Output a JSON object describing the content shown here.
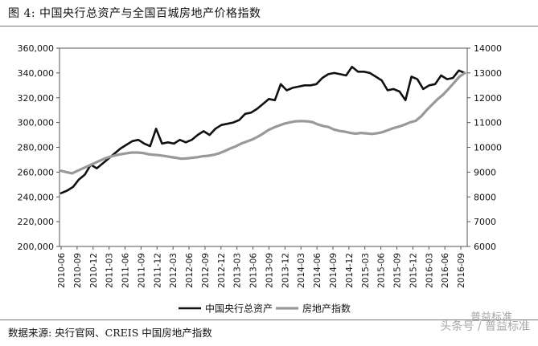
{
  "title": "图 4:  中国央行总资产与全国百城房地产价格指数",
  "source": "数据来源:  央行官网、CREIS 中国房地产指数",
  "watermark": "头条号 / 普益标准",
  "watermark_brand": "普益标准",
  "colors": {
    "series1": "#111111",
    "series2": "#999999",
    "axis": "#555555"
  },
  "chart_data": {
    "type": "line",
    "title": "",
    "xlabel": "",
    "ylabel": "",
    "ylim_left": [
      200000,
      360000
    ],
    "ylim_right": [
      6000,
      14000
    ],
    "yticks_left": [
      "200,000",
      "220,000",
      "240,000",
      "260,000",
      "280,000",
      "300,000",
      "320,000",
      "340,000",
      "360,000"
    ],
    "yticks_right": [
      "6000",
      "7000",
      "8000",
      "9000",
      "10000",
      "11000",
      "12000",
      "13000",
      "14000"
    ],
    "xticks": [
      "2010-06",
      "2010-09",
      "2010-12",
      "2011-03",
      "2011-06",
      "2011-09",
      "2011-12",
      "2012-03",
      "2012-06",
      "2012-09",
      "2012-12",
      "2013-03",
      "2013-06",
      "2013-09",
      "2013-12",
      "2014-03",
      "2014-06",
      "2014-09",
      "2014-12",
      "2015-03",
      "2015-06",
      "2015-09",
      "2015-12",
      "2016-03",
      "2016-06",
      "2016-09"
    ],
    "grid": false,
    "legend": "bottom",
    "series": [
      {
        "name": "中国央行总资产",
        "axis": "left",
        "values": [
          243000,
          245000,
          248000,
          254000,
          258000,
          266000,
          263000,
          267000,
          271000,
          275000,
          279000,
          282000,
          285000,
          286000,
          283000,
          281000,
          295000,
          283000,
          284000,
          283000,
          286000,
          284000,
          286000,
          290000,
          293000,
          290000,
          295000,
          298000,
          299000,
          300000,
          302000,
          307000,
          308000,
          311000,
          315000,
          319000,
          318000,
          331000,
          326000,
          328000,
          329000,
          330000,
          330000,
          331000,
          336000,
          339000,
          340000,
          339000,
          338000,
          345000,
          341000,
          341000,
          340000,
          337000,
          334000,
          326000,
          327000,
          325000,
          318000,
          337000,
          335000,
          327000,
          330000,
          331000,
          338000,
          335000,
          336000,
          342000,
          340000
        ]
      },
      {
        "name": "房地产指数",
        "axis": "right",
        "values": [
          9050,
          9000,
          8950,
          9050,
          9150,
          9250,
          9350,
          9450,
          9550,
          9620,
          9680,
          9720,
          9760,
          9790,
          9790,
          9770,
          9720,
          9700,
          9680,
          9650,
          9610,
          9580,
          9540,
          9550,
          9580,
          9600,
          9640,
          9660,
          9700,
          9760,
          9850,
          9950,
          10040,
          10150,
          10230,
          10310,
          10420,
          10550,
          10700,
          10800,
          10880,
          10960,
          11010,
          11050,
          11060,
          11050,
          11020,
          10930,
          10860,
          10820,
          10720,
          10660,
          10630,
          10580,
          10550,
          10580,
          10560,
          10540,
          10570,
          10620,
          10700,
          10780,
          10840,
          10920,
          11010,
          11070,
          11250,
          11500,
          11720,
          11940,
          12120,
          12350,
          12600,
          12850,
          13000
        ]
      }
    ]
  }
}
